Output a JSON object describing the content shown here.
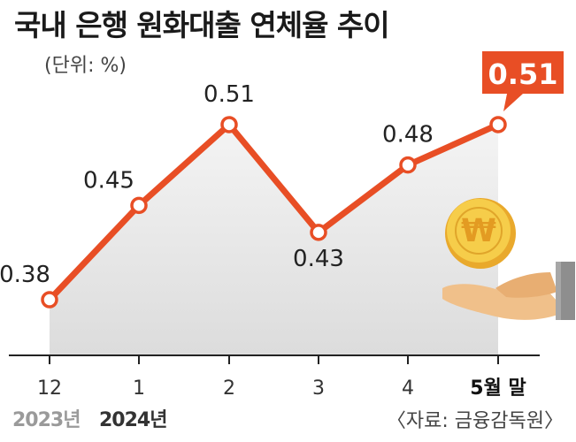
{
  "header": {
    "title": "국내 은행 원화대출 연체율 추이",
    "unit": "(단위: %)"
  },
  "footer": {
    "year_2023": "2023년",
    "year_2024": "2024년",
    "source": "〈자료: 금융감독원〉"
  },
  "colors": {
    "line": "#e84e25",
    "highlight_box": "#e84e25",
    "area_gradient_top": "#f4f4f4",
    "area_gradient_bottom": "#dcdcdc",
    "coin": "#f5c842",
    "hand": "#f0c08a"
  },
  "icons": [
    "won-coin-icon",
    "open-hand-icon"
  ],
  "chart_data": {
    "type": "line",
    "categories": [
      "12",
      "1",
      "2",
      "3",
      "4",
      "5월 말"
    ],
    "values": [
      0.38,
      0.45,
      0.51,
      0.43,
      0.48,
      0.51
    ],
    "labels": [
      "0.38",
      "0.45",
      "0.51",
      "0.43",
      "0.48",
      "0.51"
    ],
    "highlight_index": 5,
    "ylim": [
      0.34,
      0.55
    ],
    "grid": false,
    "legend": "none"
  }
}
